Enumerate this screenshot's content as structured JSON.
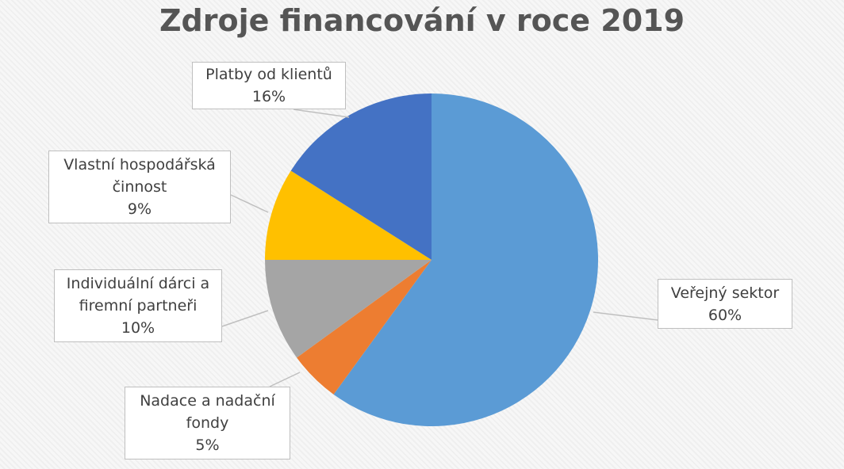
{
  "chart_data": {
    "type": "pie",
    "title": "Zdroje financování v roce 2019",
    "categories": [
      "Veřejný sektor",
      "Nadace a nadační fondy",
      "Individuální dárci a firemní partneři",
      "Vlastní hospodářská činnost",
      "Platby od klientů"
    ],
    "values": [
      60,
      5,
      10,
      9,
      16
    ],
    "value_labels": [
      "60%",
      "5%",
      "10%",
      "9%",
      "16%"
    ],
    "colors": [
      "#5b9bd5",
      "#ed7d31",
      "#a5a5a5",
      "#ffc000",
      "#4472c4"
    ]
  }
}
